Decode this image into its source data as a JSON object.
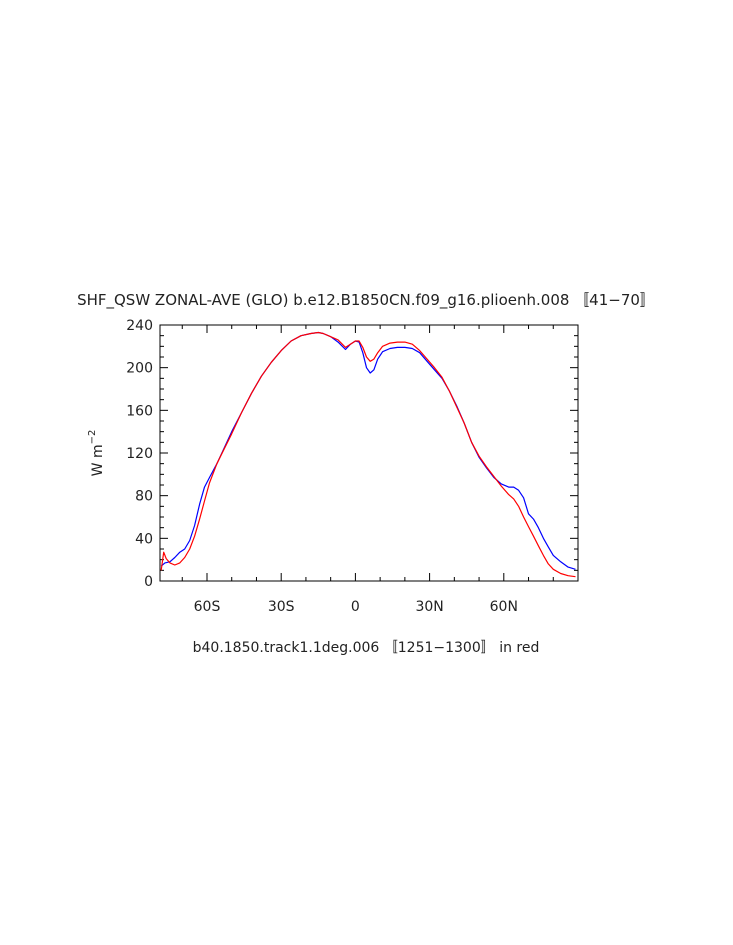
{
  "chart_data": {
    "type": "line",
    "title": "SHF_QSW ZONAL-AVE (GLO) b.e12.B1850CN.f09_g16.plioenh.008 〚41−70〛",
    "xlabel": "b40.1850.track1.1deg.006 〚1251−1300〛 in red",
    "ylabel": {
      "base": "W  m",
      "sup": "−2"
    },
    "xlim": [
      -79,
      90
    ],
    "ylim": [
      0,
      240
    ],
    "xticks": [
      {
        "value": -60,
        "label": "60S"
      },
      {
        "value": -30,
        "label": "30S"
      },
      {
        "value": 0,
        "label": "0"
      },
      {
        "value": 30,
        "label": "30N"
      },
      {
        "value": 60,
        "label": "60N"
      }
    ],
    "yticks": [
      {
        "value": 0,
        "label": "0"
      },
      {
        "value": 40,
        "label": "40"
      },
      {
        "value": 80,
        "label": "80"
      },
      {
        "value": 120,
        "label": "120"
      },
      {
        "value": 160,
        "label": "160"
      },
      {
        "value": 200,
        "label": "200"
      },
      {
        "value": 240,
        "label": "240"
      }
    ],
    "series": [
      {
        "color": "#0000ff",
        "points": [
          [
            -78.5,
            14
          ],
          [
            -77,
            17
          ],
          [
            -75,
            18
          ],
          [
            -73,
            22
          ],
          [
            -71,
            27
          ],
          [
            -69,
            30
          ],
          [
            -67,
            38
          ],
          [
            -65,
            52
          ],
          [
            -63,
            72
          ],
          [
            -61,
            88
          ],
          [
            -59,
            97
          ],
          [
            -56,
            110
          ],
          [
            -53,
            125
          ],
          [
            -50,
            140
          ],
          [
            -46,
            158
          ],
          [
            -42,
            176
          ],
          [
            -38,
            192
          ],
          [
            -34,
            205
          ],
          [
            -30,
            216
          ],
          [
            -26,
            225
          ],
          [
            -22,
            230
          ],
          [
            -18,
            232
          ],
          [
            -15,
            233
          ],
          [
            -13,
            232
          ],
          [
            -10,
            229
          ],
          [
            -7,
            224
          ],
          [
            -4,
            217
          ],
          [
            -2,
            222
          ],
          [
            0,
            225
          ],
          [
            1.5,
            224
          ],
          [
            3,
            214
          ],
          [
            4.5,
            200
          ],
          [
            6,
            195
          ],
          [
            7.5,
            198
          ],
          [
            9,
            208
          ],
          [
            11,
            215
          ],
          [
            14,
            218
          ],
          [
            17,
            219
          ],
          [
            20,
            219
          ],
          [
            23,
            218
          ],
          [
            26,
            214
          ],
          [
            29,
            206
          ],
          [
            32,
            198
          ],
          [
            35,
            190
          ],
          [
            38,
            178
          ],
          [
            41,
            164
          ],
          [
            44,
            148
          ],
          [
            47,
            130
          ],
          [
            50,
            116
          ],
          [
            53,
            106
          ],
          [
            56,
            97
          ],
          [
            59,
            91
          ],
          [
            62,
            88
          ],
          [
            64,
            88
          ],
          [
            66,
            85
          ],
          [
            68,
            78
          ],
          [
            70,
            63
          ],
          [
            72,
            58
          ],
          [
            74,
            50
          ],
          [
            76,
            40
          ],
          [
            78,
            32
          ],
          [
            80,
            24
          ],
          [
            83,
            18
          ],
          [
            86,
            13
          ],
          [
            89,
            11
          ]
        ]
      },
      {
        "color": "#ff0000",
        "points": [
          [
            -78.5,
            10
          ],
          [
            -77.5,
            27
          ],
          [
            -76.5,
            21
          ],
          [
            -75,
            17
          ],
          [
            -73,
            15
          ],
          [
            -71,
            17
          ],
          [
            -69,
            22
          ],
          [
            -67,
            30
          ],
          [
            -65,
            42
          ],
          [
            -63,
            58
          ],
          [
            -61,
            75
          ],
          [
            -59,
            92
          ],
          [
            -56,
            110
          ],
          [
            -53,
            124
          ],
          [
            -50,
            138
          ],
          [
            -46,
            158
          ],
          [
            -42,
            176
          ],
          [
            -38,
            192
          ],
          [
            -34,
            205
          ],
          [
            -30,
            216
          ],
          [
            -26,
            225
          ],
          [
            -22,
            230
          ],
          [
            -18,
            232
          ],
          [
            -15,
            233
          ],
          [
            -13,
            232
          ],
          [
            -10,
            229
          ],
          [
            -7,
            226
          ],
          [
            -4,
            219
          ],
          [
            -2,
            222
          ],
          [
            0,
            225
          ],
          [
            1.5,
            225
          ],
          [
            3,
            219
          ],
          [
            4.5,
            210
          ],
          [
            6,
            206
          ],
          [
            7.5,
            208
          ],
          [
            9,
            214
          ],
          [
            11,
            220
          ],
          [
            14,
            223
          ],
          [
            17,
            224
          ],
          [
            20,
            224
          ],
          [
            23,
            222
          ],
          [
            26,
            216
          ],
          [
            29,
            208
          ],
          [
            32,
            200
          ],
          [
            35,
            191
          ],
          [
            38,
            178
          ],
          [
            41,
            163
          ],
          [
            44,
            148
          ],
          [
            47,
            130
          ],
          [
            50,
            117
          ],
          [
            53,
            107
          ],
          [
            56,
            98
          ],
          [
            59,
            89
          ],
          [
            62,
            81
          ],
          [
            64,
            77
          ],
          [
            66,
            70
          ],
          [
            68,
            60
          ],
          [
            70,
            51
          ],
          [
            72,
            42
          ],
          [
            74,
            33
          ],
          [
            76,
            24
          ],
          [
            78,
            16
          ],
          [
            80,
            11
          ],
          [
            83,
            7
          ],
          [
            86,
            5
          ],
          [
            89,
            4
          ]
        ]
      }
    ]
  }
}
